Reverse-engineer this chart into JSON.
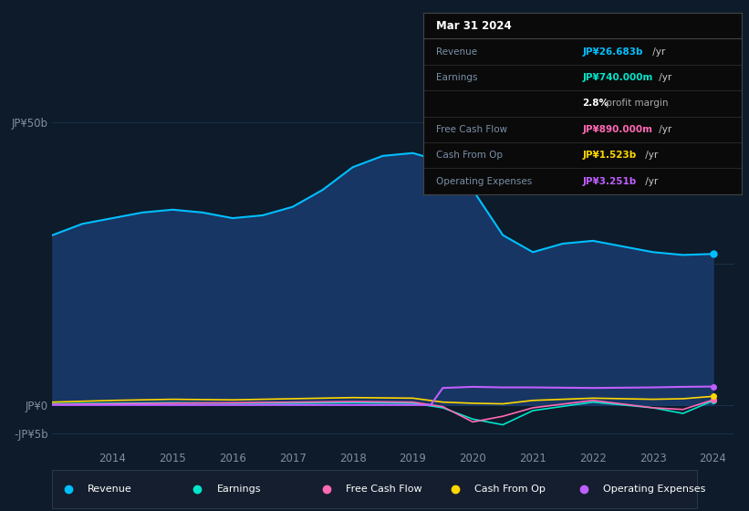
{
  "background_color": "#0d1b2a",
  "plot_bg_color": "#0d1b2a",
  "info_box": {
    "date": "Mar 31 2024",
    "rows": [
      {
        "label": "Revenue",
        "value": "JP¥26.683b",
        "value_color": "#00bfff",
        "suffix": " /yr"
      },
      {
        "label": "Earnings",
        "value": "JP¥740.000m",
        "value_color": "#00e5cc",
        "suffix": " /yr"
      },
      {
        "label": "",
        "value": "2.8%",
        "value_color": "#ffffff",
        "suffix": " profit margin"
      },
      {
        "label": "Free Cash Flow",
        "value": "JP¥890.000m",
        "value_color": "#ff69b4",
        "suffix": " /yr"
      },
      {
        "label": "Cash From Op",
        "value": "JP¥1.523b",
        "value_color": "#ffd700",
        "suffix": " /yr"
      },
      {
        "label": "Operating Expenses",
        "value": "JP¥3.251b",
        "value_color": "#bf5fff",
        "suffix": " /yr"
      }
    ]
  },
  "ylim": [
    -7000000000,
    58000000000
  ],
  "grid_color": "#1e3a5a",
  "axis_color": "#4a6080",
  "text_color": "#8090a0",
  "legend_items": [
    {
      "label": "Revenue",
      "color": "#00bfff"
    },
    {
      "label": "Earnings",
      "color": "#00e5cc"
    },
    {
      "label": "Free Cash Flow",
      "color": "#ff69b4"
    },
    {
      "label": "Cash From Op",
      "color": "#ffd700"
    },
    {
      "label": "Operating Expenses",
      "color": "#bf5fff"
    }
  ],
  "revenue": {
    "color": "#00bfff",
    "fill_color": "#1a3a6a",
    "x": [
      2013.0,
      2013.5,
      2014.0,
      2014.5,
      2015.0,
      2015.5,
      2016.0,
      2016.5,
      2017.0,
      2017.5,
      2018.0,
      2018.5,
      2019.0,
      2019.5,
      2020.0,
      2020.5,
      2021.0,
      2021.5,
      2022.0,
      2022.5,
      2023.0,
      2023.5,
      2024.0
    ],
    "y": [
      30000000000,
      32000000000,
      33000000000,
      34000000000,
      34500000000,
      34000000000,
      33000000000,
      33500000000,
      35000000000,
      38000000000,
      42000000000,
      44000000000,
      44500000000,
      43000000000,
      38000000000,
      30000000000,
      27000000000,
      28500000000,
      29000000000,
      28000000000,
      27000000000,
      26500000000,
      26683000000
    ]
  },
  "earnings": {
    "color": "#00e5cc",
    "x": [
      2013.0,
      2014.0,
      2015.0,
      2016.0,
      2017.0,
      2018.0,
      2019.0,
      2019.5,
      2020.0,
      2020.5,
      2021.0,
      2022.0,
      2023.0,
      2023.5,
      2024.0
    ],
    "y": [
      200000000,
      300000000,
      400000000,
      300000000,
      300000000,
      400000000,
      300000000,
      -500000000,
      -2500000000,
      -3500000000,
      -1000000000,
      500000000,
      -500000000,
      -1500000000,
      740000000
    ]
  },
  "free_cash_flow": {
    "color": "#ff69b4",
    "x": [
      2013.0,
      2014.0,
      2015.0,
      2016.0,
      2017.0,
      2018.0,
      2019.0,
      2019.5,
      2020.0,
      2020.5,
      2021.0,
      2022.0,
      2023.0,
      2023.5,
      2024.0
    ],
    "y": [
      100000000,
      200000000,
      300000000,
      400000000,
      500000000,
      600000000,
      500000000,
      -300000000,
      -3000000000,
      -2000000000,
      -500000000,
      800000000,
      -500000000,
      -800000000,
      890000000
    ]
  },
  "cash_from_op": {
    "color": "#ffd700",
    "x": [
      2013.0,
      2014.0,
      2015.0,
      2016.0,
      2017.0,
      2018.0,
      2019.0,
      2019.5,
      2020.0,
      2020.5,
      2021.0,
      2022.0,
      2023.0,
      2023.5,
      2024.0
    ],
    "y": [
      500000000,
      800000000,
      1000000000,
      900000000,
      1100000000,
      1300000000,
      1200000000,
      500000000,
      300000000,
      200000000,
      800000000,
      1200000000,
      1000000000,
      1100000000,
      1523000000
    ]
  },
  "operating_expenses": {
    "color": "#bf5fff",
    "x": [
      2013.0,
      2019.3,
      2019.5,
      2020.0,
      2020.5,
      2021.0,
      2022.0,
      2023.0,
      2023.5,
      2024.0
    ],
    "y": [
      0,
      0,
      3000000000,
      3200000000,
      3100000000,
      3100000000,
      3000000000,
      3100000000,
      3200000000,
      3251000000
    ]
  }
}
